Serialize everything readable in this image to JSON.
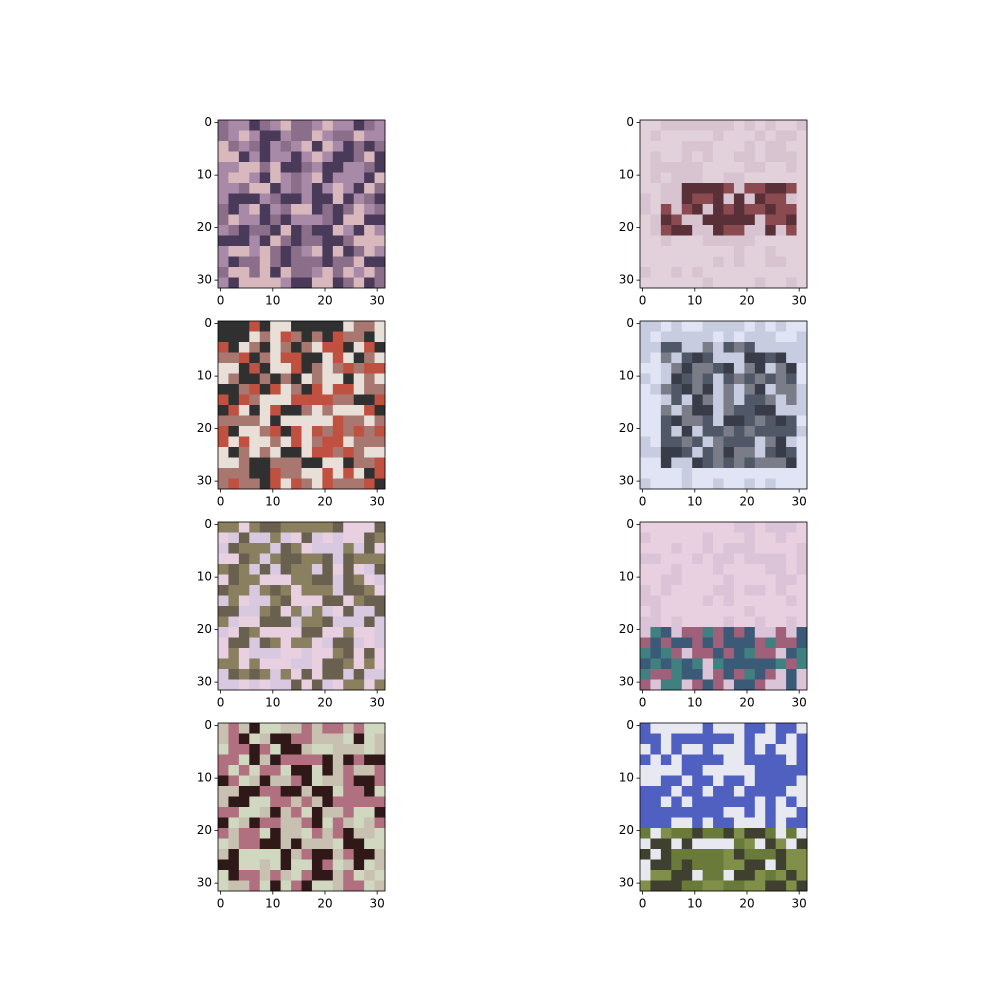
{
  "chart_data": [
    {
      "type": "image",
      "xlim": [
        -0.5,
        31.5
      ],
      "ylim": [
        31.5,
        -0.5
      ],
      "xticks": [
        0,
        10,
        20,
        30
      ],
      "yticks": [
        0,
        10,
        20,
        30
      ]
    },
    {
      "type": "image",
      "xlim": [
        -0.5,
        31.5
      ],
      "ylim": [
        31.5,
        -0.5
      ],
      "xticks": [
        0,
        10,
        20,
        30
      ],
      "yticks": [
        0,
        10,
        20,
        30
      ]
    },
    {
      "type": "image",
      "xlim": [
        -0.5,
        31.5
      ],
      "ylim": [
        31.5,
        -0.5
      ],
      "xticks": [
        0,
        10,
        20,
        30
      ],
      "yticks": [
        0,
        10,
        20,
        30
      ]
    },
    {
      "type": "image",
      "xlim": [
        -0.5,
        31.5
      ],
      "ylim": [
        31.5,
        -0.5
      ],
      "xticks": [
        0,
        10,
        20,
        30
      ],
      "yticks": [
        0,
        10,
        20,
        30
      ]
    },
    {
      "type": "image",
      "xlim": [
        -0.5,
        31.5
      ],
      "ylim": [
        31.5,
        -0.5
      ],
      "xticks": [
        0,
        10,
        20,
        30
      ],
      "yticks": [
        0,
        10,
        20,
        30
      ]
    },
    {
      "type": "image",
      "xlim": [
        -0.5,
        31.5
      ],
      "ylim": [
        31.5,
        -0.5
      ],
      "xticks": [
        0,
        10,
        20,
        30
      ],
      "yticks": [
        0,
        10,
        20,
        30
      ]
    },
    {
      "type": "image",
      "xlim": [
        -0.5,
        31.5
      ],
      "ylim": [
        31.5,
        -0.5
      ],
      "xticks": [
        0,
        10,
        20,
        30
      ],
      "yticks": [
        0,
        10,
        20,
        30
      ]
    },
    {
      "type": "image",
      "xlim": [
        -0.5,
        31.5
      ],
      "ylim": [
        31.5,
        -0.5
      ],
      "xticks": [
        0,
        10,
        20,
        30
      ],
      "yticks": [
        0,
        10,
        20,
        30
      ]
    }
  ]
}
